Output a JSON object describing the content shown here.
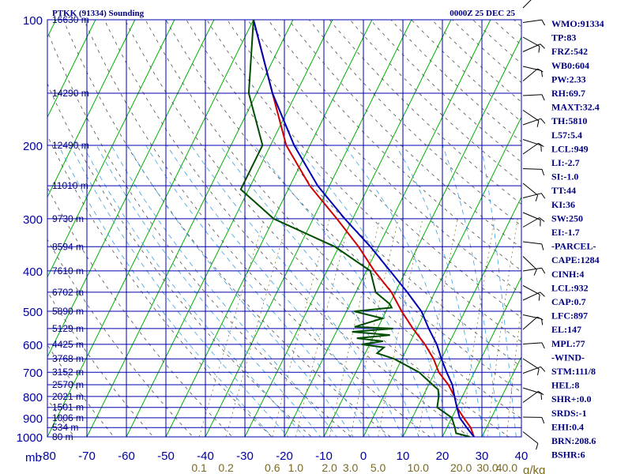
{
  "chart_data": {
    "type": "line",
    "title": "PTKK (91334) Sounding",
    "valid_time": "0000Z 25 DEC 25",
    "y_axis_label": "mb",
    "y_axis_scale": "log pressure (reversed)",
    "ylim": [
      1000,
      100
    ],
    "xlim": [
      -80,
      40
    ],
    "pressure_levels": [
      100,
      200,
      300,
      400,
      500,
      600,
      700,
      800,
      900,
      1000
    ],
    "temp_ticks": [
      "-80",
      "-70",
      "-60",
      "-50",
      "-40",
      "-30",
      "-20",
      "-10",
      "0",
      "10",
      "20",
      "30",
      "40"
    ],
    "mixing_ratio_labels": [
      "0.1",
      "0.2",
      "0.6",
      "1.0",
      "2.0",
      "3.0",
      "5.0",
      "10.0",
      "20.0",
      "30.0",
      "40.0"
    ],
    "mixing_ratio_unit": "g/kg",
    "height_labels": [
      {
        "p": 100,
        "text": "16630 m"
      },
      {
        "p": 150,
        "text": "14290 m"
      },
      {
        "p": 200,
        "text": "12490 m"
      },
      {
        "p": 250,
        "text": "11010 m"
      },
      {
        "p": 300,
        "text": "9730 m"
      },
      {
        "p": 350,
        "text": "8594 m"
      },
      {
        "p": 400,
        "text": "7610 m"
      },
      {
        "p": 450,
        "text": "6702 m"
      },
      {
        "p": 500,
        "text": "5890 m"
      },
      {
        "p": 550,
        "text": "5129 m"
      },
      {
        "p": 600,
        "text": "4425 m"
      },
      {
        "p": 650,
        "text": "3768 m"
      },
      {
        "p": 700,
        "text": "3152 m"
      },
      {
        "p": 750,
        "text": "2570 m"
      },
      {
        "p": 800,
        "text": "2021 m"
      },
      {
        "p": 850,
        "text": "1501 m"
      },
      {
        "p": 900,
        "text": "1006 m"
      },
      {
        "p": 950,
        "text": "534 m"
      },
      {
        "p": 1000,
        "text": "80 m"
      }
    ],
    "series": [
      {
        "name": "",
        "color": "#d00000",
        "points": [
          [
            100,
            -80
          ],
          [
            150,
            -66
          ],
          [
            200,
            -56
          ],
          [
            250,
            -45
          ],
          [
            300,
            -34
          ],
          [
            350,
            -25
          ],
          [
            400,
            -18
          ],
          [
            450,
            -11
          ],
          [
            500,
            -6
          ],
          [
            550,
            -1
          ],
          [
            600,
            4
          ],
          [
            650,
            8
          ],
          [
            700,
            11
          ],
          [
            750,
            15
          ],
          [
            800,
            18
          ],
          [
            850,
            20
          ],
          [
            900,
            23
          ],
          [
            950,
            26
          ],
          [
            1000,
            28
          ]
        ]
      },
      {
        "name": "",
        "color": "#0000b4",
        "points": [
          [
            100,
            -80
          ],
          [
            150,
            -66
          ],
          [
            200,
            -54
          ],
          [
            250,
            -43
          ],
          [
            300,
            -32
          ],
          [
            350,
            -22
          ],
          [
            400,
            -14
          ],
          [
            450,
            -7
          ],
          [
            500,
            -1
          ],
          [
            550,
            3
          ],
          [
            600,
            7
          ],
          [
            650,
            10
          ],
          [
            700,
            13
          ],
          [
            750,
            16
          ],
          [
            800,
            18
          ],
          [
            850,
            20
          ],
          [
            900,
            22
          ],
          [
            950,
            25
          ],
          [
            1000,
            28
          ]
        ]
      },
      {
        "name": "",
        "color": "#004d00",
        "points": [
          [
            100,
            -80
          ],
          [
            150,
            -72
          ],
          [
            200,
            -62
          ],
          [
            255,
            -62
          ],
          [
            300,
            -50
          ],
          [
            350,
            -31
          ],
          [
            400,
            -19
          ],
          [
            450,
            -15
          ],
          [
            480,
            -10
          ],
          [
            490,
            -9
          ],
          [
            500,
            -18
          ],
          [
            520,
            -10
          ],
          [
            545,
            -16
          ],
          [
            550,
            -6
          ],
          [
            560,
            -16
          ],
          [
            570,
            -6
          ],
          [
            580,
            -14
          ],
          [
            590,
            -7
          ],
          [
            600,
            -12
          ],
          [
            610,
            -6
          ],
          [
            630,
            -7
          ],
          [
            650,
            -2
          ],
          [
            700,
            6
          ],
          [
            750,
            11
          ],
          [
            770,
            13
          ],
          [
            800,
            14
          ],
          [
            850,
            15
          ],
          [
            900,
            20
          ],
          [
            950,
            22
          ],
          [
            980,
            23
          ],
          [
            1000,
            27
          ]
        ]
      }
    ],
    "grid": true
  },
  "stats": [
    "WMO:91334",
    "TP:83",
    "FRZ:542",
    "WB0:604",
    "PW:2.33",
    "RH:69.7",
    "MAXT:32.4",
    "TH:5810",
    "L57:5.4",
    "LCL:949",
    "LI:-2.7",
    "SI:-1.0",
    "TT:44",
    "KI:36",
    "SW:250",
    "EI:-1.7",
    "-PARCEL-",
    "CAPE:1284",
    "CINH:4",
    "LCL:932",
    "CAP:0.7",
    "LFC:897",
    "EL:147",
    "MPL:77",
    "-WIND-",
    "STM:111/8",
    "HEL:8",
    "SHR+:0.0",
    "SRDS:-1",
    "EHI:0.4",
    "BRN:208.6",
    "BSHR:6"
  ]
}
